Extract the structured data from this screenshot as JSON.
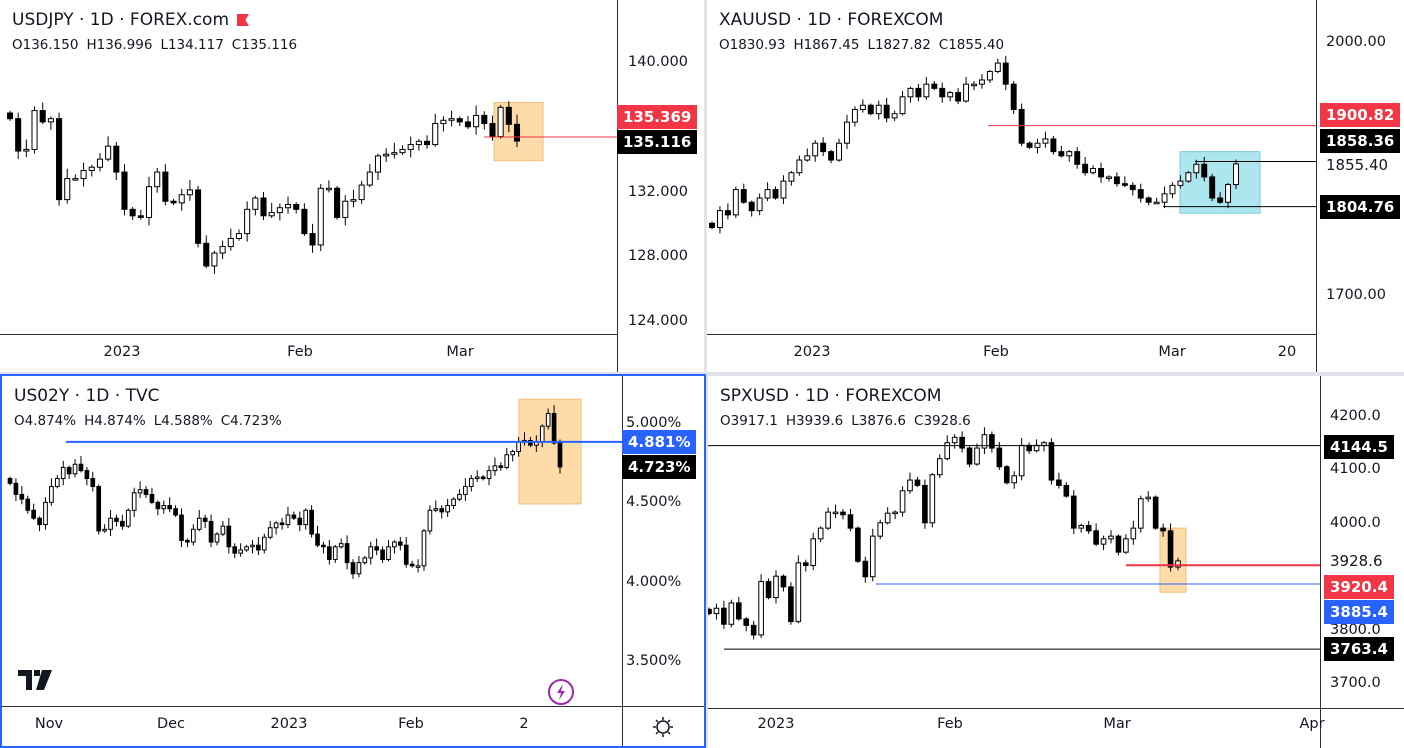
{
  "colors": {
    "red": "#f23645",
    "blue": "#2962ff",
    "black": "#000000",
    "highlight_orange": "#ffd8a0",
    "highlight_cyan": "#a4e4ee"
  },
  "panels": [
    {
      "title": "USDJPY · 1D · FOREX.com",
      "ohlc": [
        "O136.150",
        "H136.996",
        "L134.117",
        "C135.116"
      ],
      "time_labels": [
        "2023",
        "Feb",
        "Mar"
      ],
      "price_labels": [
        {
          "text": "135.369",
          "style": "red"
        },
        {
          "text": "135.116",
          "style": "black"
        }
      ]
    },
    {
      "title": "XAUUSD · 1D · FOREXCOM",
      "ohlc": [
        "O1830.93",
        "H1867.45",
        "L1827.82",
        "C1855.40"
      ],
      "time_labels": [
        "2023",
        "Feb",
        "Mar",
        "20"
      ],
      "price_labels": [
        {
          "text": "1900.82",
          "style": "red"
        },
        {
          "text": "1858.36",
          "style": "black"
        },
        {
          "text": "1855.40",
          "style": "plain"
        },
        {
          "text": "1804.76",
          "style": "black"
        }
      ]
    },
    {
      "title": "US02Y · 1D · TVC",
      "ohlc": [
        "O4.874%",
        "H4.874%",
        "L4.588%",
        "C4.723%"
      ],
      "time_labels": [
        "Nov",
        "Dec",
        "2023",
        "Feb",
        "2"
      ],
      "price_labels": [
        {
          "text": "4.881%",
          "style": "blue"
        },
        {
          "text": "4.723%",
          "style": "black"
        }
      ],
      "icons": [
        "tradingview-logo",
        "lightning-icon",
        "settings-gear-icon"
      ]
    },
    {
      "title": "SPXUSD · 1D · FOREXCOM",
      "ohlc": [
        "O3917.1",
        "H3939.6",
        "L3876.6",
        "C3928.6"
      ],
      "time_labels": [
        "2023",
        "Feb",
        "Mar",
        "Apr"
      ],
      "price_labels": [
        {
          "text": "4144.5",
          "style": "black"
        },
        {
          "text": "3928.6",
          "style": "plain"
        },
        {
          "text": "3920.4",
          "style": "red"
        },
        {
          "text": "3885.4",
          "style": "blue"
        },
        {
          "text": "3763.4",
          "style": "black"
        }
      ]
    }
  ],
  "chart_data": [
    {
      "type": "candlestick",
      "symbol": "USDJPY",
      "timeframe": "1D",
      "ticks": [
        "140.000",
        "132.000",
        "128.000",
        "124.000"
      ],
      "tick_values": [
        140,
        132,
        128,
        124
      ],
      "closes": [
        136.5,
        134.5,
        134.6,
        137,
        136.3,
        136.5,
        131.5,
        132.8,
        132.8,
        133.3,
        133.5,
        134,
        134.8,
        133.2,
        130.9,
        130.5,
        130.4,
        132.3,
        133.2,
        131.4,
        131.3,
        131.8,
        132.1,
        128.8,
        127.4,
        128.2,
        128.6,
        129.1,
        129.4,
        130.9,
        131.6,
        130.5,
        130.7,
        131,
        131.2,
        130.9,
        129.4,
        128.7,
        132.2,
        132.2,
        130.4,
        131.4,
        131.5,
        132.4,
        133.2,
        134.2,
        134.3,
        134.4,
        134.6,
        134.9,
        135.1,
        134.9,
        136.2,
        136.4,
        136.5,
        136.3,
        136,
        136.7,
        136.2,
        135.4,
        137.2,
        136.15,
        135.116
      ],
      "levels": [
        {
          "price": 135.369,
          "color": "red"
        }
      ],
      "highlight_box": {
        "color": "orange",
        "price_range": [
          133.9,
          137.5
        ]
      }
    },
    {
      "type": "candlestick",
      "symbol": "XAUUSD",
      "timeframe": "1D",
      "ticks": [
        "2000.00",
        "1700.00"
      ],
      "tick_values": [
        2000,
        1700
      ],
      "closes": [
        1780,
        1800,
        1795,
        1825,
        1810,
        1800,
        1815,
        1825,
        1815,
        1835,
        1845,
        1860,
        1865,
        1880,
        1870,
        1860,
        1880,
        1905,
        1920,
        1925,
        1915,
        1925,
        1910,
        1915,
        1935,
        1945,
        1935,
        1950,
        1945,
        1935,
        1940,
        1930,
        1950,
        1950,
        1955,
        1965,
        1975,
        1950,
        1920,
        1880,
        1875,
        1880,
        1885,
        1870,
        1865,
        1870,
        1855,
        1845,
        1850,
        1840,
        1840,
        1832,
        1830,
        1825,
        1815,
        1810,
        1810,
        1820,
        1830,
        1835,
        1845,
        1855,
        1840,
        1815,
        1810,
        1830.93,
        1855.4
      ],
      "levels": [
        {
          "price": 1900.82,
          "color": "black-thin-red"
        },
        {
          "price": 1858.36,
          "color": "black"
        },
        {
          "price": 1804.76,
          "color": "black"
        }
      ],
      "highlight_box": {
        "color": "cyan",
        "price_range": [
          1797,
          1870
        ]
      }
    },
    {
      "type": "candlestick",
      "symbol": "US02Y",
      "timeframe": "1D",
      "unit": "%",
      "ticks": [
        "5.000%",
        "4.500%",
        "4.000%",
        "3.500%"
      ],
      "tick_values": [
        5,
        4.5,
        4,
        3.5
      ],
      "closes": [
        4.62,
        4.55,
        4.52,
        4.45,
        4.4,
        4.36,
        4.5,
        4.6,
        4.65,
        4.72,
        4.68,
        4.74,
        4.7,
        4.65,
        4.6,
        4.32,
        4.33,
        4.4,
        4.38,
        4.35,
        4.45,
        4.56,
        4.58,
        4.55,
        4.5,
        4.46,
        4.48,
        4.46,
        4.42,
        4.26,
        4.25,
        4.33,
        4.4,
        4.38,
        4.25,
        4.3,
        4.35,
        4.22,
        4.18,
        4.2,
        4.22,
        4.23,
        4.2,
        4.28,
        4.34,
        4.37,
        4.36,
        4.42,
        4.4,
        4.36,
        4.45,
        4.3,
        4.23,
        4.22,
        4.14,
        4.22,
        4.24,
        4.12,
        4.05,
        4.12,
        4.15,
        4.22,
        4.2,
        4.14,
        4.22,
        4.25,
        4.23,
        4.11,
        4.1,
        4.1,
        4.32,
        4.45,
        4.46,
        4.44,
        4.48,
        4.52,
        4.55,
        4.6,
        4.65,
        4.66,
        4.65,
        4.7,
        4.73,
        4.72,
        4.8,
        4.82,
        4.88,
        4.89,
        4.86,
        4.88,
        4.98,
        5.06,
        4.874,
        4.723
      ],
      "levels": [
        {
          "price": 4.881,
          "color": "blue"
        }
      ],
      "highlight_box": {
        "color": "orange",
        "price_range": [
          4.49,
          5.15
        ]
      }
    },
    {
      "type": "candlestick",
      "symbol": "SPXUSD",
      "timeframe": "1D",
      "ticks": [
        "4200.0",
        "4100.0",
        "4000.0",
        "3800.0",
        "3700.0"
      ],
      "tick_values": [
        4200,
        4100,
        4000,
        3800,
        3700
      ],
      "closes": [
        3830,
        3840,
        3810,
        3850,
        3820,
        3808,
        3790,
        3890,
        3860,
        3900,
        3880,
        3815,
        3925,
        3920,
        3970,
        3990,
        4020,
        4020,
        4015,
        3990,
        3928,
        3899,
        3975,
        4000,
        4018,
        4020,
        4060,
        4080,
        4070,
        4000,
        4090,
        4120,
        4150,
        4160,
        4140,
        4110,
        4140,
        4165,
        4140,
        4105,
        4075,
        4088,
        4145,
        4135,
        4145,
        4150,
        4080,
        4070,
        4050,
        3990,
        3995,
        3985,
        3960,
        3970,
        3975,
        3945,
        3970,
        3990,
        4045,
        4048,
        3990,
        3985,
        3917.1,
        3928.6
      ],
      "levels": [
        {
          "price": 4144.5,
          "color": "black"
        },
        {
          "price": 3920.4,
          "color": "red"
        },
        {
          "price": 3885.4,
          "color": "blue"
        },
        {
          "price": 3763.4,
          "color": "black"
        }
      ],
      "highlight_box": {
        "color": "orange",
        "price_range": [
          3870,
          3990
        ]
      }
    }
  ]
}
